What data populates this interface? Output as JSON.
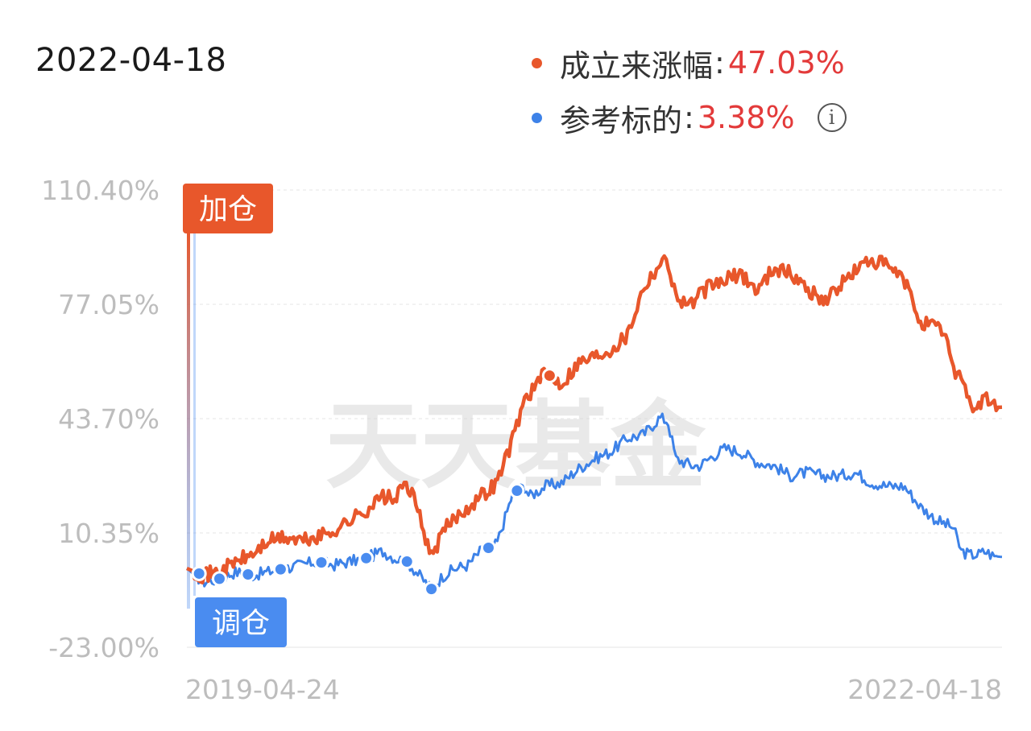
{
  "header": {
    "date": "2022-04-18"
  },
  "legend": [
    {
      "name": "成立来涨幅",
      "value": "47.03%",
      "color": "#e8572b"
    },
    {
      "name": "参考标的",
      "value": "3.38%",
      "color": "#3d82e8"
    }
  ],
  "markers": {
    "add": "加仓",
    "adjust": "调仓"
  },
  "watermark": "天天基金",
  "colors": {
    "fund": "#e8572b",
    "benchmark": "#3d82e8",
    "value_text": "#e33a3a",
    "add_marker": "#e8572b",
    "adjust_marker": "#4a8cf0"
  },
  "chart_data": {
    "type": "line",
    "x_start": "2019-04-24",
    "x_end": "2022-04-18",
    "xticks": [
      "2019-04-24",
      "2022-04-18"
    ],
    "yticks": [
      "110.40%",
      "77.05%",
      "43.70%",
      "10.35%",
      "-23.00%"
    ],
    "ylim": [
      -23.0,
      110.4
    ],
    "grid": true,
    "x": [
      0,
      0.02,
      0.04,
      0.06,
      0.08,
      0.1,
      0.12,
      0.14,
      0.16,
      0.18,
      0.2,
      0.22,
      0.24,
      0.255,
      0.27,
      0.285,
      0.3,
      0.315,
      0.33,
      0.345,
      0.36,
      0.38,
      0.4,
      0.415,
      0.42,
      0.44,
      0.46,
      0.48,
      0.5,
      0.52,
      0.54,
      0.56,
      0.58,
      0.59,
      0.6,
      0.62,
      0.63,
      0.64,
      0.66,
      0.68,
      0.7,
      0.72,
      0.74,
      0.76,
      0.78,
      0.8,
      0.82,
      0.84,
      0.86,
      0.88,
      0.9,
      0.92,
      0.93,
      0.94,
      0.95,
      0.96,
      0.97,
      0.98,
      0.99,
      1.0
    ],
    "series": [
      {
        "name": "成立来涨幅",
        "values": [
          0,
          -2,
          -1,
          2,
          4,
          8,
          9,
          8,
          9,
          11,
          14,
          17,
          21,
          20,
          25,
          16,
          3,
          11,
          15,
          18,
          21,
          25,
          38,
          50,
          51,
          57,
          54,
          60,
          62,
          64,
          68,
          82,
          89,
          90,
          79,
          77,
          80,
          82,
          84,
          86,
          81,
          88,
          86,
          82,
          78,
          82,
          87,
          90,
          88,
          84,
          72,
          70,
          69,
          58,
          57,
          48,
          47,
          50,
          47,
          47.03
        ]
      },
      {
        "name": "参考标的",
        "values": [
          0,
          -4,
          -3,
          -1,
          -2,
          -1,
          0,
          1,
          2,
          1,
          2,
          3,
          5,
          3,
          2,
          -2,
          -6,
          -2,
          0,
          1,
          5,
          7,
          22,
          24,
          21,
          24,
          25,
          29,
          32,
          34,
          38,
          39,
          44,
          43,
          32,
          30,
          30,
          32,
          35,
          34,
          31,
          30,
          27,
          28,
          27,
          27,
          28,
          25,
          24,
          24,
          18,
          14,
          13,
          12,
          5,
          4,
          4,
          5,
          3.5,
          3.38
        ]
      }
    ],
    "events": [
      {
        "x": 0.015,
        "series": "成立来涨幅",
        "type": "adjust"
      },
      {
        "x": 0.04,
        "series": "参考标的",
        "type": "adjust"
      },
      {
        "x": 0.075,
        "series": "参考标的",
        "type": "adjust"
      },
      {
        "x": 0.115,
        "series": "参考标的",
        "type": "adjust"
      },
      {
        "x": 0.165,
        "series": "参考标的",
        "type": "adjust"
      },
      {
        "x": 0.22,
        "series": "参考标的",
        "type": "adjust"
      },
      {
        "x": 0.27,
        "series": "参考标的",
        "type": "adjust"
      },
      {
        "x": 0.3,
        "series": "参考标的",
        "type": "adjust"
      },
      {
        "x": 0.37,
        "series": "参考标的",
        "type": "adjust"
      },
      {
        "x": 0.405,
        "series": "参考标的",
        "type": "adjust"
      },
      {
        "x": 0.445,
        "series": "成立来涨幅",
        "type": "add"
      }
    ]
  }
}
